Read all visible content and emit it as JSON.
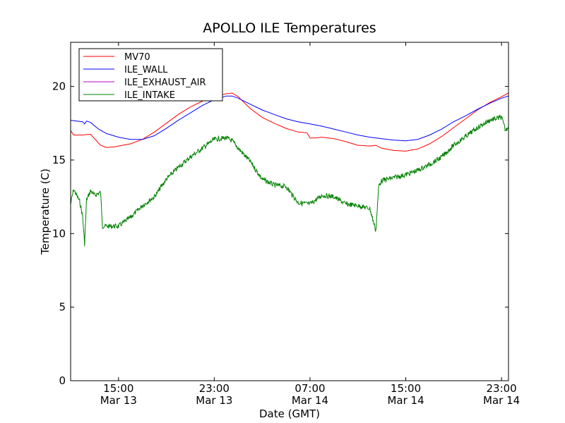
{
  "chart_data": {
    "type": "line",
    "title": "APOLLO ILE Temperatures",
    "xlabel": "Date (GMT)",
    "ylabel": "Temperature (C)",
    "xlim": [
      "2013-03-13 11:00",
      "2013-03-14 23:35"
    ],
    "ylim": [
      0,
      23
    ],
    "yticks": [
      0,
      5,
      10,
      15,
      20
    ],
    "xticks": [
      {
        "time": "2013-03-13 15:00",
        "label1": "15:00",
        "label2": "Mar 13"
      },
      {
        "time": "2013-03-13 23:00",
        "label1": "23:00",
        "label2": "Mar 13"
      },
      {
        "time": "2013-03-14 07:00",
        "label1": "07:00",
        "label2": "Mar 14"
      },
      {
        "time": "2013-03-14 15:00",
        "label1": "15:00",
        "label2": "Mar 14"
      },
      {
        "time": "2013-03-14 23:00",
        "label1": "23:00",
        "label2": "Mar 14"
      }
    ],
    "grid": false,
    "legend": "top-left",
    "series": [
      {
        "name": "MV70",
        "color": "#ff0000",
        "points": [
          [
            "2013-03-13 11:00",
            17.0
          ],
          [
            "2013-03-13 11:15",
            16.7
          ],
          [
            "2013-03-13 12:00",
            16.7
          ],
          [
            "2013-03-13 12:40",
            16.75
          ],
          [
            "2013-03-13 13:30",
            16.0
          ],
          [
            "2013-03-13 14:00",
            15.85
          ],
          [
            "2013-03-13 14:40",
            15.9
          ],
          [
            "2013-03-13 16:00",
            16.1
          ],
          [
            "2013-03-13 17:00",
            16.4
          ],
          [
            "2013-03-13 18:00",
            16.9
          ],
          [
            "2013-03-13 19:00",
            17.5
          ],
          [
            "2013-03-13 20:00",
            18.1
          ],
          [
            "2013-03-13 21:00",
            18.6
          ],
          [
            "2013-03-13 22:00",
            19.0
          ],
          [
            "2013-03-13 23:00",
            19.3
          ],
          [
            "2013-03-14 00:00",
            19.5
          ],
          [
            "2013-03-14 00:30",
            19.55
          ],
          [
            "2013-03-14 01:00",
            19.3
          ],
          [
            "2013-03-14 02:00",
            18.5
          ],
          [
            "2013-03-14 03:00",
            17.9
          ],
          [
            "2013-03-14 04:00",
            17.5
          ],
          [
            "2013-03-14 05:00",
            17.15
          ],
          [
            "2013-03-14 06:00",
            16.9
          ],
          [
            "2013-03-14 06:45",
            16.85
          ],
          [
            "2013-03-14 07:00",
            16.5
          ],
          [
            "2013-03-14 07:20",
            16.5
          ],
          [
            "2013-03-14 08:00",
            16.55
          ],
          [
            "2013-03-14 09:00",
            16.45
          ],
          [
            "2013-03-14 10:00",
            16.25
          ],
          [
            "2013-03-14 11:00",
            16.0
          ],
          [
            "2013-03-14 12:00",
            15.95
          ],
          [
            "2013-03-14 12:30",
            16.0
          ],
          [
            "2013-03-14 13:00",
            15.8
          ],
          [
            "2013-03-14 14:00",
            15.65
          ],
          [
            "2013-03-14 15:00",
            15.6
          ],
          [
            "2013-03-14 16:00",
            15.75
          ],
          [
            "2013-03-14 17:00",
            16.1
          ],
          [
            "2013-03-14 18:00",
            16.6
          ],
          [
            "2013-03-14 19:00",
            17.2
          ],
          [
            "2013-03-14 20:00",
            17.8
          ],
          [
            "2013-03-14 21:00",
            18.4
          ],
          [
            "2013-03-14 22:00",
            18.9
          ],
          [
            "2013-03-14 23:00",
            19.3
          ],
          [
            "2013-03-14 23:35",
            19.55
          ]
        ]
      },
      {
        "name": "ILE_WALL",
        "color": "#0000ff",
        "points": [
          [
            "2013-03-13 11:00",
            17.7
          ],
          [
            "2013-03-13 11:30",
            17.65
          ],
          [
            "2013-03-13 12:00",
            17.6
          ],
          [
            "2013-03-13 12:10",
            17.45
          ],
          [
            "2013-03-13 12:20",
            17.65
          ],
          [
            "2013-03-13 12:40",
            17.55
          ],
          [
            "2013-03-13 13:20",
            17.1
          ],
          [
            "2013-03-13 14:00",
            16.8
          ],
          [
            "2013-03-13 15:00",
            16.55
          ],
          [
            "2013-03-13 16:00",
            16.4
          ],
          [
            "2013-03-13 17:00",
            16.4
          ],
          [
            "2013-03-13 18:00",
            16.65
          ],
          [
            "2013-03-13 19:00",
            17.15
          ],
          [
            "2013-03-13 20:00",
            17.7
          ],
          [
            "2013-03-13 21:00",
            18.2
          ],
          [
            "2013-03-13 22:00",
            18.7
          ],
          [
            "2013-03-13 23:00",
            19.1
          ],
          [
            "2013-03-14 00:00",
            19.35
          ],
          [
            "2013-03-14 00:30",
            19.35
          ],
          [
            "2013-03-14 01:00",
            19.2
          ],
          [
            "2013-03-14 02:00",
            18.8
          ],
          [
            "2013-03-14 03:00",
            18.4
          ],
          [
            "2013-03-14 04:00",
            18.1
          ],
          [
            "2013-03-14 05:00",
            17.8
          ],
          [
            "2013-03-14 06:00",
            17.6
          ],
          [
            "2013-03-14 07:00",
            17.45
          ],
          [
            "2013-03-14 08:00",
            17.3
          ],
          [
            "2013-03-14 09:00",
            17.1
          ],
          [
            "2013-03-14 10:00",
            16.9
          ],
          [
            "2013-03-14 11:00",
            16.7
          ],
          [
            "2013-03-14 12:00",
            16.55
          ],
          [
            "2013-03-14 13:00",
            16.45
          ],
          [
            "2013-03-14 14:00",
            16.35
          ],
          [
            "2013-03-14 15:00",
            16.3
          ],
          [
            "2013-03-14 16:00",
            16.4
          ],
          [
            "2013-03-14 17:00",
            16.7
          ],
          [
            "2013-03-14 18:00",
            17.1
          ],
          [
            "2013-03-14 19:00",
            17.6
          ],
          [
            "2013-03-14 20:00",
            18.0
          ],
          [
            "2013-03-14 21:00",
            18.45
          ],
          [
            "2013-03-14 22:00",
            18.85
          ],
          [
            "2013-03-14 23:00",
            19.2
          ],
          [
            "2013-03-14 23:35",
            19.35
          ]
        ]
      },
      {
        "name": "ILE_EXHAUST_AIR",
        "color": "#bf00bf",
        "points": []
      },
      {
        "name": "ILE_INTAKE",
        "color": "#008000",
        "points": [
          [
            "2013-03-13 11:00",
            12.0
          ],
          [
            "2013-03-13 11:15",
            13.0
          ],
          [
            "2013-03-13 11:30",
            12.6
          ],
          [
            "2013-03-13 11:45",
            12.2
          ],
          [
            "2013-03-13 12:00",
            11.2
          ],
          [
            "2013-03-13 12:10",
            9.3
          ],
          [
            "2013-03-13 12:20",
            12.3
          ],
          [
            "2013-03-13 12:40",
            12.9
          ],
          [
            "2013-03-13 13:00",
            12.6
          ],
          [
            "2013-03-13 13:30",
            12.8
          ],
          [
            "2013-03-13 13:40",
            10.5
          ],
          [
            "2013-03-13 14:00",
            10.5
          ],
          [
            "2013-03-13 15:00",
            10.5
          ],
          [
            "2013-03-13 16:00",
            11.1
          ],
          [
            "2013-03-13 17:00",
            11.9
          ],
          [
            "2013-03-13 18:00",
            12.5
          ],
          [
            "2013-03-13 19:00",
            13.7
          ],
          [
            "2013-03-13 20:00",
            14.5
          ],
          [
            "2013-03-13 21:00",
            15.2
          ],
          [
            "2013-03-13 22:00",
            15.8
          ],
          [
            "2013-03-13 23:00",
            16.4
          ],
          [
            "2013-03-14 00:00",
            16.5
          ],
          [
            "2013-03-14 00:30",
            16.3
          ],
          [
            "2013-03-14 01:00",
            15.8
          ],
          [
            "2013-03-14 02:00",
            14.9
          ],
          [
            "2013-03-14 03:00",
            13.7
          ],
          [
            "2013-03-14 04:00",
            13.3
          ],
          [
            "2013-03-14 05:00",
            13.2
          ],
          [
            "2013-03-14 06:00",
            12.1
          ],
          [
            "2013-03-14 07:00",
            12.0
          ],
          [
            "2013-03-14 08:00",
            12.6
          ],
          [
            "2013-03-14 09:00",
            12.5
          ],
          [
            "2013-03-14 10:00",
            12.0
          ],
          [
            "2013-03-14 11:00",
            11.9
          ],
          [
            "2013-03-14 12:00",
            11.7
          ],
          [
            "2013-03-14 12:30",
            10.2
          ],
          [
            "2013-03-14 12:45",
            13.3
          ],
          [
            "2013-03-14 13:00",
            13.6
          ],
          [
            "2013-03-14 14:00",
            13.8
          ],
          [
            "2013-03-14 15:00",
            14.0
          ],
          [
            "2013-03-14 16:00",
            14.3
          ],
          [
            "2013-03-14 17:00",
            14.7
          ],
          [
            "2013-03-14 18:00",
            15.2
          ],
          [
            "2013-03-14 19:00",
            16.0
          ],
          [
            "2013-03-14 20:00",
            16.6
          ],
          [
            "2013-03-14 21:00",
            17.2
          ],
          [
            "2013-03-14 22:00",
            17.7
          ],
          [
            "2013-03-14 23:00",
            17.9
          ],
          [
            "2013-03-14 23:20",
            17.0
          ],
          [
            "2013-03-14 23:35",
            17.3
          ]
        ]
      }
    ]
  }
}
